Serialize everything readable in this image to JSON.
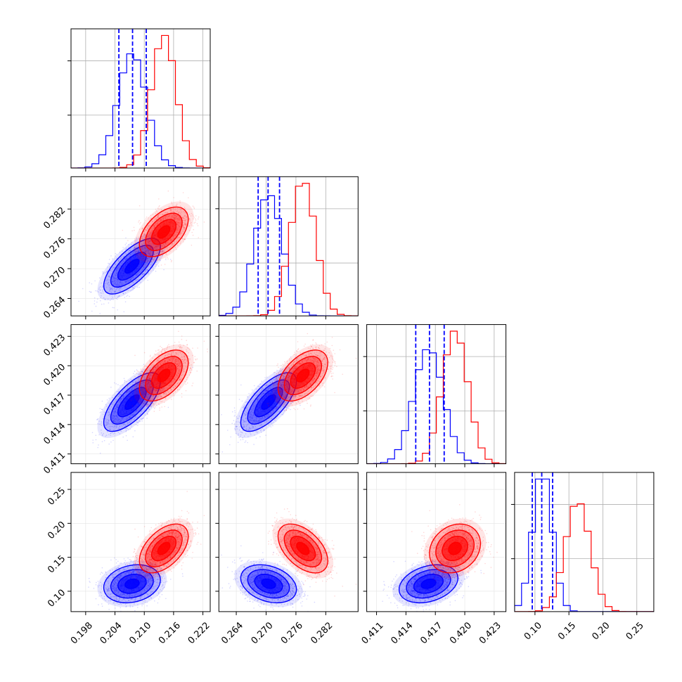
{
  "chart_data": {
    "type": "corner",
    "title": "",
    "grid": true,
    "colors": {
      "blue": "#0000ff",
      "red": "#ff0000"
    },
    "parameters": [
      {
        "label": "",
        "range": [
          0.195,
          0.2235
        ],
        "ticks": [
          0.198,
          0.204,
          0.21,
          0.216,
          0.222
        ],
        "tick_labels": [
          "0.198",
          "0.204",
          "0.210",
          "0.216",
          "0.222"
        ]
      },
      {
        "label": "",
        "range": [
          0.2605,
          0.2885
        ],
        "ticks": [
          0.264,
          0.27,
          0.276,
          0.282
        ],
        "tick_labels": [
          "0.264",
          "0.270",
          "0.276",
          "0.282"
        ]
      },
      {
        "label": "",
        "range": [
          0.41,
          0.4242
        ],
        "ticks": [
          0.411,
          0.414,
          0.417,
          0.42,
          0.423
        ],
        "tick_labels": [
          "0.411",
          "0.414",
          "0.417",
          "0.420",
          "0.423"
        ]
      },
      {
        "label": "",
        "range": [
          0.07,
          0.275
        ],
        "ticks": [
          0.1,
          0.15,
          0.2,
          0.25
        ],
        "tick_labels": [
          "0.10",
          "0.15",
          "0.20",
          "0.25"
        ]
      }
    ],
    "series": [
      {
        "color": "blue",
        "mean": [
          0.2075,
          0.2705,
          0.4163,
          0.111
        ],
        "std": [
          0.0029,
          0.0028,
          0.0015,
          0.014
        ],
        "corr": [
          [
            1,
            0.7,
            0.7,
            0.2
          ],
          [
            0.7,
            1,
            0.7,
            -0.3
          ],
          [
            0.7,
            0.7,
            1,
            0.3
          ],
          [
            0.2,
            -0.3,
            0.3,
            1
          ]
        ],
        "quantiles": [
          [
            0.2048,
            0.2076,
            0.2104
          ],
          [
            0.2684,
            0.2704,
            0.2727
          ],
          [
            0.415,
            0.4164,
            0.4179
          ],
          [
            0.096,
            0.11,
            0.126
          ]
        ]
      },
      {
        "color": "red",
        "mean": [
          0.214,
          0.2774,
          0.419,
          0.163
        ],
        "std": [
          0.0025,
          0.0025,
          0.0013,
          0.018
        ],
        "corr": [
          [
            1,
            0.5,
            0.5,
            0.5
          ],
          [
            0.5,
            1,
            0.5,
            -0.5
          ],
          [
            0.5,
            0.5,
            1,
            0.2
          ],
          [
            0.5,
            -0.5,
            0.2,
            1
          ]
        ],
        "quantiles": []
      }
    ]
  }
}
